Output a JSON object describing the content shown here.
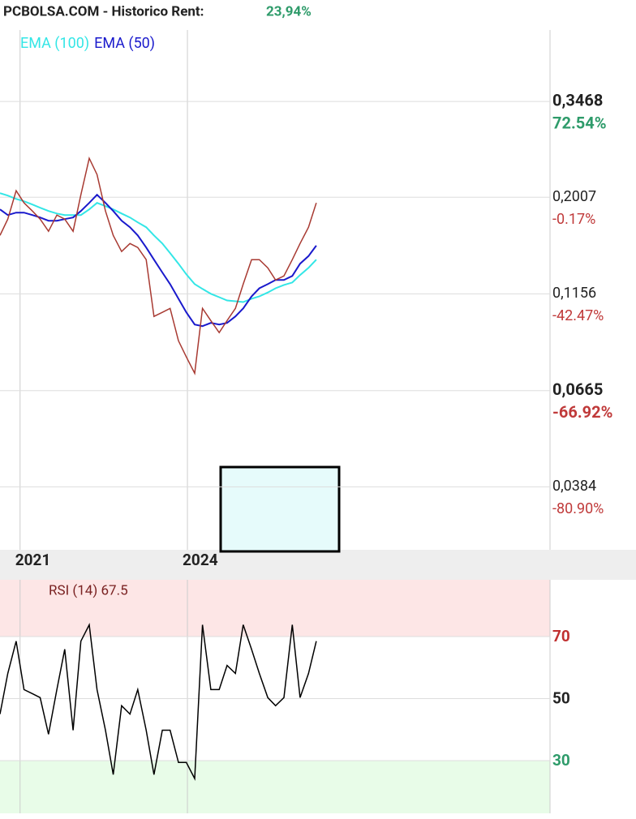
{
  "chart_data": [
    {
      "type": "line",
      "title": "PCBOLSA.COM - Historico  Rent:",
      "return_label": "23,94%",
      "x": [
        2020.64,
        2020.78,
        2020.93,
        2021.07,
        2021.22,
        2021.36,
        2021.51,
        2021.66,
        2021.8,
        2021.95,
        2022.09,
        2022.24,
        2022.38,
        2022.53,
        2022.67,
        2022.82,
        2022.97,
        2023.11,
        2023.26,
        2023.4,
        2023.55,
        2023.69,
        2023.84,
        2023.98,
        2024.13,
        2024.27,
        2024.42,
        2024.57,
        2024.71,
        2024.86,
        2025.0,
        2025.15,
        2025.29,
        2025.44,
        2025.58,
        2025.73,
        2025.88,
        2026.02,
        2026.17,
        2026.31
      ],
      "values": [
        0.1614,
        0.1771,
        0.2083,
        0.1943,
        0.1855,
        0.1771,
        0.1652,
        0.1813,
        0.1771,
        0.1652,
        0.2035,
        0.2507,
        0.2285,
        0.1855,
        0.1614,
        0.1472,
        0.1541,
        0.1506,
        0.1405,
        0.1016,
        0.104,
        0.1064,
        0.0884,
        0.0806,
        0.0734,
        0.1064,
        0.0992,
        0.0926,
        0.0992,
        0.1064,
        0.1222,
        0.1405,
        0.1405,
        0.1341,
        0.1251,
        0.128,
        0.1405,
        0.1541,
        0.1691,
        0.1943
      ],
      "color": "#a83a32",
      "series": [
        {
          "name": "EMA (100)",
          "color": "#33e6e6",
          "values": [
            0.2054,
            0.2026,
            0.1988,
            0.1961,
            0.1925,
            0.189,
            0.1855,
            0.1829,
            0.1813,
            0.1813,
            0.1813,
            0.1872,
            0.1943,
            0.1907,
            0.1872,
            0.1829,
            0.1788,
            0.1739,
            0.1691,
            0.1614,
            0.1541,
            0.1459,
            0.1373,
            0.1292,
            0.1222,
            0.1189,
            0.1156,
            0.1134,
            0.1113,
            0.1108,
            0.1103,
            0.1124,
            0.1139,
            0.1165,
            0.1193,
            0.1216,
            0.1233,
            0.1287,
            0.1341,
            0.1405
          ]
        },
        {
          "name": "EMA (50)",
          "color": "#1a1acc",
          "values": [
            0.1872,
            0.1813,
            0.1838,
            0.1838,
            0.1813,
            0.1788,
            0.1755,
            0.1755,
            0.1771,
            0.1788,
            0.1855,
            0.1943,
            0.2035,
            0.1943,
            0.1855,
            0.1755,
            0.1691,
            0.1614,
            0.1506,
            0.1405,
            0.1306,
            0.1222,
            0.1124,
            0.104,
            0.097,
            0.0961,
            0.0979,
            0.097,
            0.0979,
            0.1016,
            0.1064,
            0.1139,
            0.1193,
            0.1222,
            0.1251,
            0.1251,
            0.128,
            0.1373,
            0.1434,
            0.1522
          ]
        }
      ],
      "log_scale": true,
      "xlim": [
        2020.64,
        2030.5
      ],
      "xticks": [
        2021,
        2024
      ],
      "ylim": [
        0.0268,
        0.5215
      ],
      "yticks": [
        {
          "value": 0.3468,
          "label": "0,3468"
        },
        {
          "value": 0.2007,
          "label": "0,2007"
        },
        {
          "value": 0.1156,
          "label": "0,1156"
        },
        {
          "value": 0.0665,
          "label": "0,0665"
        },
        {
          "value": 0.0384,
          "label": "0,0384"
        }
      ],
      "ytick_changes": [
        "72.54%",
        "-0.17%",
        "-42.47%",
        "-66.92%",
        "-80.90%"
      ],
      "grid": true
    },
    {
      "type": "line",
      "title": "RSI (14) 67.5",
      "x": [
        2020.64,
        2020.78,
        2020.93,
        2021.07,
        2021.22,
        2021.36,
        2021.51,
        2021.66,
        2021.8,
        2021.95,
        2022.09,
        2022.24,
        2022.38,
        2022.53,
        2022.67,
        2022.82,
        2022.97,
        2023.11,
        2023.26,
        2023.4,
        2023.55,
        2023.69,
        2023.84,
        2023.98,
        2024.13,
        2024.27,
        2024.42,
        2024.57,
        2024.71,
        2024.86,
        2025.0,
        2025.15,
        2025.29,
        2025.44,
        2025.58,
        2025.73,
        2025.88,
        2026.02,
        2026.17,
        2026.31
      ],
      "values": [
        45.0,
        58.1,
        68.5,
        52.9,
        51.6,
        50.3,
        38.5,
        52.9,
        65.9,
        39.8,
        68.5,
        73.8,
        52.9,
        39.8,
        25.5,
        47.7,
        45.0,
        52.9,
        39.8,
        25.5,
        39.8,
        39.8,
        29.4,
        29.4,
        24.2,
        73.8,
        52.9,
        52.9,
        60.7,
        58.1,
        73.8,
        65.9,
        58.1,
        50.3,
        47.7,
        50.3,
        73.8,
        50.3,
        58.1,
        68.5
      ],
      "color": "#000000",
      "xlim": [
        2020.64,
        2030.5
      ],
      "xticks": [
        2021,
        2024
      ],
      "ylim": [
        13,
        88.3
      ],
      "yticks": [
        30,
        50,
        70
      ],
      "bands": true,
      "grid": true
    }
  ]
}
